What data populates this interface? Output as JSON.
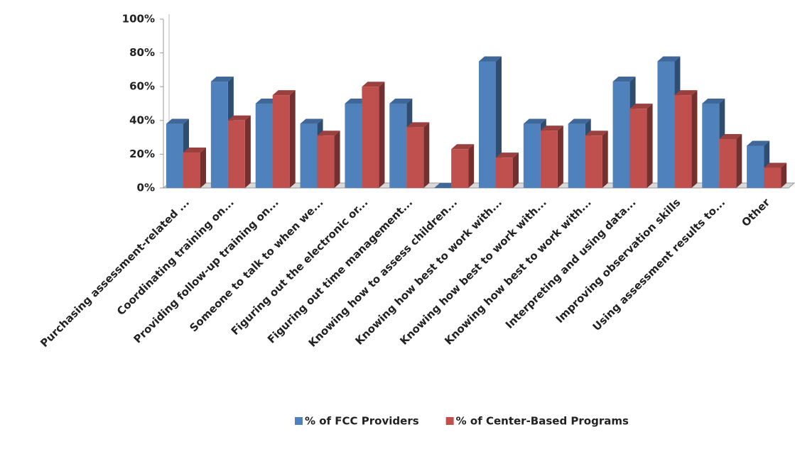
{
  "chart_data": {
    "type": "bar",
    "categories": [
      "Purchasing assessment-related ...",
      "Coordinating training on...",
      "Providing follow-up training on...",
      "Someone to talk to when we...",
      "Figuring out the electronic or...",
      "Figuring out time management...",
      "Knowing how to assess children...",
      "Knowing how best to work with...",
      "Knowing how best to work with...",
      "Knowing how best to work with...",
      "Interpreting and using data...",
      "Improving observation skills",
      "Using assessment results to...",
      "Other"
    ],
    "series": [
      {
        "name": "% of FCC Providers",
        "color": "#4f81bd",
        "values": [
          38,
          63,
          50,
          38,
          50,
          50,
          0,
          75,
          38,
          38,
          63,
          75,
          50,
          25
        ]
      },
      {
        "name": "% of Center-Based  Programs",
        "color": "#c0504d",
        "values": [
          21,
          40,
          55,
          31,
          60,
          36,
          23,
          18,
          34,
          31,
          47,
          55,
          29,
          12
        ]
      }
    ],
    "ylim": [
      0,
      100
    ],
    "yticks": [
      {
        "value": 0,
        "label": "0%"
      },
      {
        "value": 20,
        "label": "20%"
      },
      {
        "value": 40,
        "label": "40%"
      },
      {
        "value": 60,
        "label": "60%"
      },
      {
        "value": 80,
        "label": "80%"
      },
      {
        "value": 100,
        "label": "100%"
      }
    ],
    "legend": "bottom"
  }
}
